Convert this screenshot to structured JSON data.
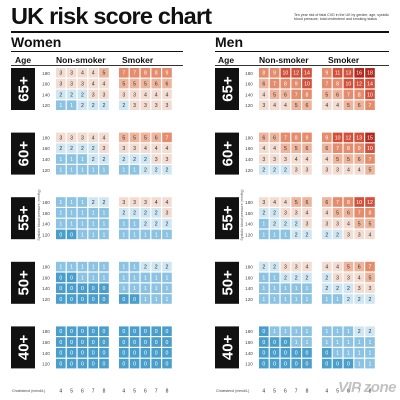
{
  "header": {
    "title": "UK risk score chart",
    "subtitle": "Ten year risk of fatal CVD in the UK by gender, age, systolic blood pressure, total cholesterol and smoking status"
  },
  "panels": [
    {
      "gender": "Women",
      "age_label": "Age",
      "non_smoker_label": "Non-smoker",
      "smoker_label": "Smoker"
    },
    {
      "gender": "Men",
      "age_label": "Age",
      "non_smoker_label": "Non-smoker",
      "smoker_label": "Smoker"
    }
  ],
  "watermark": "VIP zone",
  "colors": {
    "risk_low_dark": "#4a9ecb",
    "risk_low": "#8cc3e2",
    "risk_low_light": "#cfe6f3",
    "risk_mid": "#f3ddd2",
    "risk_mid_high": "#efb59c",
    "risk_high": "#e58c6d",
    "risk_very_high": "#d2503a",
    "risk_extreme": "#b02a1f"
  },
  "chart_data": {
    "type": "heatmap",
    "title": "UK risk score chart",
    "value_description": "Ten year risk of fatal CVD (%)",
    "x_label": "Cholesterol (mmol/L)",
    "y_label": "Systolic blood pressure (mmHg)",
    "x": [
      4,
      5,
      6,
      7,
      8
    ],
    "y": [
      180,
      160,
      140,
      120
    ],
    "smoking_status": [
      "Non-smoker",
      "Smoker"
    ],
    "age_groups": [
      "65+",
      "60+",
      "55+",
      "50+",
      "40+"
    ],
    "panels": [
      {
        "gender": "Women",
        "groups": [
          {
            "age": "65+",
            "non_smoker": [
              [
                3,
                3,
                4,
                4,
                5
              ],
              [
                3,
                3,
                3,
                4,
                4
              ],
              [
                2,
                2,
                2,
                3,
                3
              ],
              [
                1,
                1,
                2,
                2,
                2
              ]
            ],
            "smoker": [
              [
                7,
                7,
                8,
                8,
                9
              ],
              [
                5,
                5,
                5,
                6,
                6
              ],
              [
                3,
                3,
                4,
                4,
                4
              ],
              [
                2,
                3,
                3,
                3,
                3
              ]
            ]
          },
          {
            "age": "60+",
            "non_smoker": [
              [
                3,
                3,
                3,
                4,
                4
              ],
              [
                2,
                2,
                2,
                2,
                3
              ],
              [
                1,
                1,
                1,
                2,
                2
              ],
              [
                1,
                1,
                1,
                1,
                1
              ]
            ],
            "smoker": [
              [
                5,
                5,
                5,
                6,
                7
              ],
              [
                3,
                3,
                4,
                4,
                4
              ],
              [
                2,
                2,
                2,
                3,
                3
              ],
              [
                1,
                1,
                2,
                2,
                2
              ]
            ]
          },
          {
            "age": "55+",
            "non_smoker": [
              [
                1,
                1,
                1,
                2,
                2
              ],
              [
                1,
                1,
                1,
                1,
                1
              ],
              [
                1,
                1,
                1,
                1,
                1
              ],
              [
                0,
                0,
                1,
                1,
                1
              ]
            ],
            "smoker": [
              [
                3,
                3,
                3,
                4,
                4
              ],
              [
                2,
                2,
                2,
                2,
                3
              ],
              [
                1,
                1,
                2,
                2,
                2
              ],
              [
                1,
                1,
                1,
                1,
                1
              ]
            ]
          },
          {
            "age": "50+",
            "non_smoker": [
              [
                1,
                1,
                1,
                1,
                1
              ],
              [
                0,
                0,
                1,
                1,
                1
              ],
              [
                0,
                0,
                0,
                0,
                0
              ],
              [
                0,
                0,
                0,
                0,
                0
              ]
            ],
            "smoker": [
              [
                1,
                1,
                2,
                2,
                2
              ],
              [
                1,
                1,
                1,
                1,
                1
              ],
              [
                1,
                1,
                1,
                1,
                1
              ],
              [
                0,
                0,
                1,
                1,
                1
              ]
            ]
          },
          {
            "age": "40+",
            "non_smoker": [
              [
                0,
                0,
                0,
                0,
                0
              ],
              [
                0,
                0,
                0,
                0,
                0
              ],
              [
                0,
                0,
                0,
                0,
                0
              ],
              [
                0,
                0,
                0,
                0,
                0
              ]
            ],
            "smoker": [
              [
                0,
                0,
                0,
                0,
                0
              ],
              [
                0,
                0,
                0,
                0,
                0
              ],
              [
                0,
                0,
                0,
                0,
                0
              ],
              [
                0,
                0,
                0,
                0,
                0
              ]
            ]
          }
        ]
      },
      {
        "gender": "Men",
        "groups": [
          {
            "age": "65+",
            "non_smoker": [
              [
                8,
                9,
                10,
                12,
                14
              ],
              [
                6,
                7,
                8,
                9,
                10
              ],
              [
                4,
                5,
                6,
                7,
                8
              ],
              [
                3,
                4,
                4,
                5,
                6
              ]
            ],
            "smoker": [
              [
                9,
                11,
                13,
                16,
                18
              ],
              [
                7,
                8,
                10,
                12,
                14
              ],
              [
                5,
                6,
                7,
                8,
                10
              ],
              [
                4,
                4,
                5,
                6,
                7
              ]
            ]
          },
          {
            "age": "60+",
            "non_smoker": [
              [
                6,
                6,
                7,
                8,
                9
              ],
              [
                4,
                4,
                5,
                5,
                6
              ],
              [
                3,
                3,
                3,
                4,
                4
              ],
              [
                2,
                2,
                2,
                3,
                3
              ]
            ],
            "smoker": [
              [
                9,
                10,
                12,
                13,
                15
              ],
              [
                6,
                7,
                8,
                9,
                10
              ],
              [
                4,
                5,
                5,
                6,
                7
              ],
              [
                3,
                3,
                4,
                4,
                5
              ]
            ]
          },
          {
            "age": "55+",
            "non_smoker": [
              [
                3,
                4,
                4,
                5,
                6
              ],
              [
                2,
                2,
                3,
                3,
                4
              ],
              [
                1,
                2,
                2,
                2,
                3
              ],
              [
                1,
                1,
                1,
                2,
                2
              ]
            ],
            "smoker": [
              [
                6,
                7,
                8,
                10,
                12
              ],
              [
                4,
                5,
                6,
                7,
                8
              ],
              [
                3,
                3,
                4,
                5,
                5
              ],
              [
                2,
                2,
                3,
                3,
                4
              ]
            ]
          },
          {
            "age": "50+",
            "non_smoker": [
              [
                2,
                2,
                3,
                3,
                4
              ],
              [
                1,
                1,
                2,
                2,
                2
              ],
              [
                1,
                1,
                1,
                1,
                1
              ],
              [
                1,
                1,
                1,
                1,
                1
              ]
            ],
            "smoker": [
              [
                4,
                4,
                5,
                6,
                7
              ],
              [
                2,
                3,
                3,
                4,
                5
              ],
              [
                2,
                2,
                2,
                3,
                3
              ],
              [
                1,
                1,
                2,
                2,
                2
              ]
            ]
          },
          {
            "age": "40+",
            "non_smoker": [
              [
                0,
                1,
                1,
                1,
                1
              ],
              [
                0,
                0,
                0,
                1,
                1
              ],
              [
                0,
                0,
                0,
                0,
                0
              ],
              [
                0,
                0,
                0,
                0,
                0
              ]
            ],
            "smoker": [
              [
                1,
                1,
                1,
                2,
                2
              ],
              [
                1,
                1,
                1,
                1,
                1
              ],
              [
                0,
                1,
                1,
                1,
                1
              ],
              [
                0,
                0,
                0,
                1,
                1
              ]
            ]
          }
        ]
      }
    ]
  }
}
